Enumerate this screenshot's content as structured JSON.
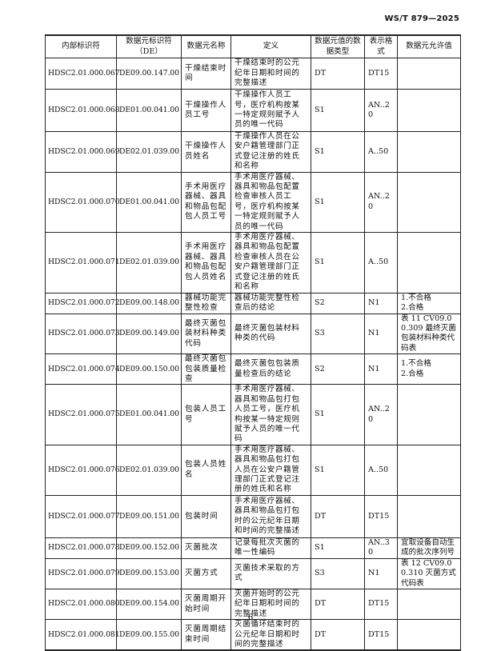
{
  "header": {
    "standard_code": "WS/T 879—2025"
  },
  "table": {
    "columns": [
      "内部标识符",
      "数据元标识符（DE）",
      "数据元名称",
      "定义",
      "数据元值的数据类型",
      "表示格式",
      "数据元允许值"
    ],
    "rows": [
      [
        "HDSC2.01.000.067",
        "DE09.00.147.00",
        "干燥结束时间",
        "干燥结束时的公元纪年日期和时间的完整描述",
        "DT",
        "DT15",
        ""
      ],
      [
        "HDSC2.01.000.068",
        "DE01.00.041.00",
        "干燥操作人员工号",
        "干燥操作人员工号，医疗机构按某一特定规则赋予人员的唯一代码",
        "S1",
        "AN..20",
        ""
      ],
      [
        "HDSC2.01.000.069",
        "DE02.01.039.00",
        "干燥操作人员姓名",
        "干燥操作人员在公安户籍管理部门正式登记注册的姓氏和名称",
        "S1",
        "A..50",
        ""
      ],
      [
        "HDSC2.01.000.070",
        "DE01.00.041.00",
        "手术用医疗器械、器具和物品包配包人员工号",
        "手术用医疗器械、器具和物品包配置检查审核人员工号，医疗机构按某一特定规则赋予人员的唯一代码",
        "S1",
        "AN..20",
        ""
      ],
      [
        "HDSC2.01.000.071",
        "DE02.01.039.00",
        "手术用医疗器械、器具和物品包配包人员姓名",
        "手术用医疗器械、器具和物品包配置检查审核人员在公安户籍管理部门正式登记注册的姓氏和名称",
        "S1",
        "A..50",
        ""
      ],
      [
        "HDSC2.01.000.072",
        "DE09.00.148.00",
        "器械功能完整性检查",
        "器械功能完整性检查后的结论",
        "S2",
        "N1",
        "1.不合格\n2.合格"
      ],
      [
        "HDSC2.01.000.073",
        "DE09.00.149.00",
        "最终灭菌包装材料种类代码",
        "最终灭菌包装材料种类的代码",
        "S3",
        "N1",
        "表 11 CV09.00.309 最终灭菌包装材料种类代码表"
      ],
      [
        "HDSC2.01.000.074",
        "DE09.00.150.00",
        "最终灭菌包包装质量检查",
        "最终灭菌包包装质量检查后的结论",
        "S2",
        "N1",
        "1.不合格\n2.合格"
      ],
      [
        "HDSC2.01.000.075",
        "DE01.00.041.00",
        "包装人员工号",
        "手术用医疗器械、器具和物品包打包人员工号，医疗机构按某一特定规则赋予人员的唯一代码",
        "S1",
        "AN..20",
        ""
      ],
      [
        "HDSC2.01.000.076",
        "DE02.01.039.00",
        "包装人员姓名",
        "手术用医疗器械、器具和物品包打包人员在公安户籍管理部门正式登记注册的姓氏和名称",
        "S1",
        "A..50",
        ""
      ],
      [
        "HDSC2.01.000.077",
        "DE09.00.151.00",
        "包装时间",
        "手术用医疗器械、器具和物品包打包时的公元纪年日期和时间的完整描述",
        "DT",
        "DT15",
        ""
      ],
      [
        "HDSC2.01.000.078",
        "DE09.00.152.00",
        "灭菌批次",
        "记录每批次灭菌的唯一性编码",
        "S1",
        "AN..30",
        "宜取设备自动生成的批次序列号"
      ],
      [
        "HDSC2.01.000.079",
        "DE09.00.153.00",
        "灭菌方式",
        "灭菌技术采取的方式",
        "S3",
        "N1",
        "表 12 CV09.00.310 灭菌方式代码表"
      ],
      [
        "HDSC2.01.000.080",
        "DE09.00.154.00",
        "灭菌周期开始时间",
        "灭菌开始时的公元纪年日期和时间的完整描述",
        "DT",
        "DT15",
        ""
      ],
      [
        "HDSC2.01.000.081",
        "DE09.00.155.00",
        "灭菌周期结束时间",
        "灭菌循环结束时的公元纪年日期和时间的完整描述",
        "DT",
        "DT15",
        ""
      ]
    ]
  },
  "footer": {
    "page_number": "6"
  }
}
